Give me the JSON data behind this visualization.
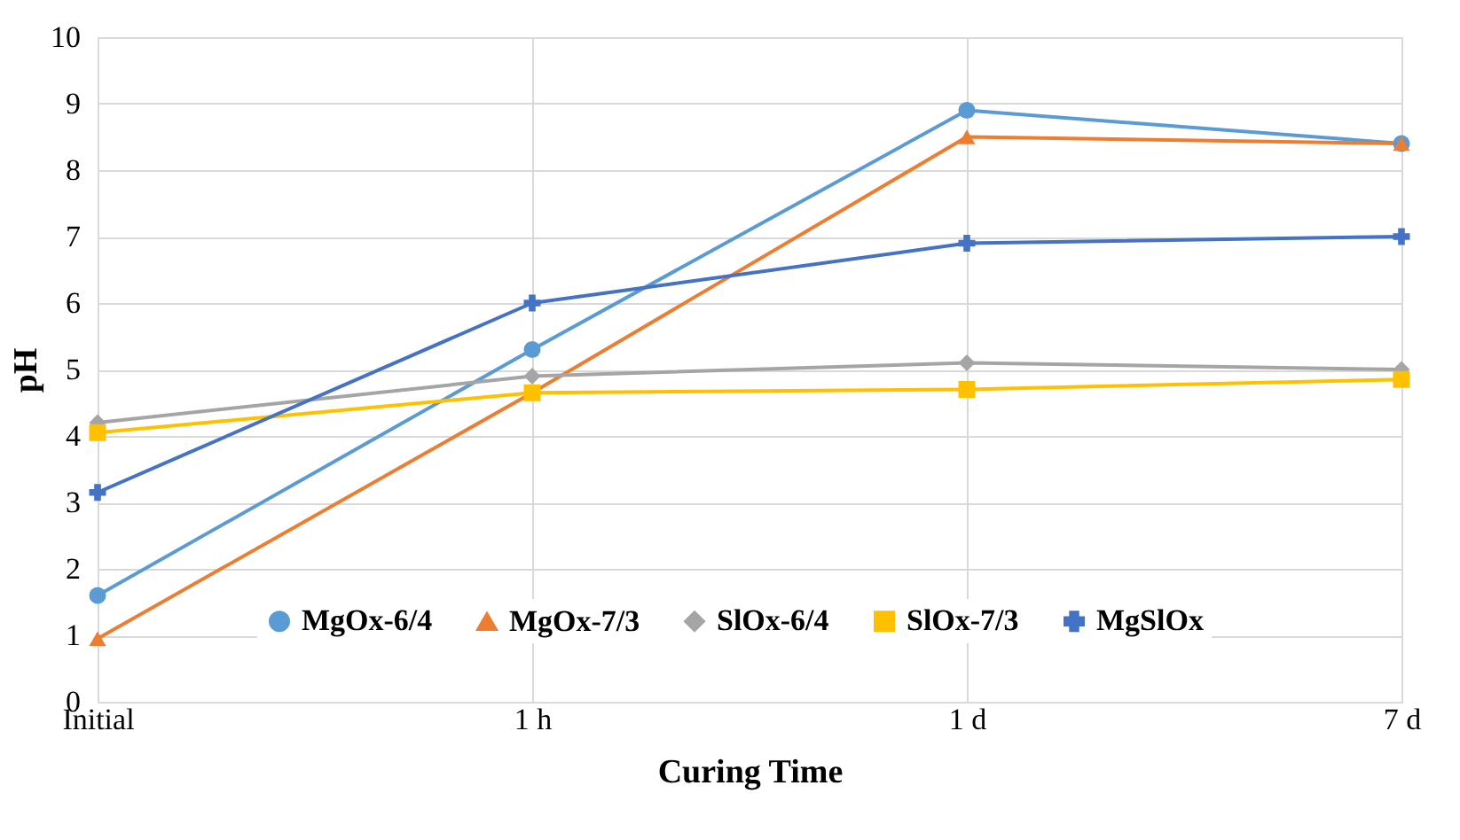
{
  "chart_data": {
    "type": "line",
    "xlabel": "Curing Time",
    "ylabel": "pH",
    "categories": [
      "Initial",
      "1 h",
      "1 d",
      "7 d"
    ],
    "ylim": [
      0,
      10
    ],
    "yticks": [
      0,
      1,
      2,
      3,
      4,
      5,
      6,
      7,
      8,
      9,
      10
    ],
    "grid": true,
    "legend": "bottom",
    "line_style": "solid",
    "series": [
      {
        "name": "MgOx-6/4",
        "color": "#5b9bd5",
        "marker": "circle",
        "values": [
          1.6,
          5.3,
          8.9,
          8.4
        ]
      },
      {
        "name": "MgOx-7/3",
        "color": "#ed7d31",
        "marker": "triangle",
        "values": [
          0.95,
          4.65,
          8.5,
          8.4
        ]
      },
      {
        "name": "SlOx-6/4",
        "color": "#a5a5a5",
        "marker": "diamond",
        "values": [
          4.2,
          4.9,
          5.1,
          5.0
        ]
      },
      {
        "name": "SlOx-7/3",
        "color": "#ffc000",
        "marker": "square",
        "values": [
          4.05,
          4.65,
          4.7,
          4.85
        ]
      },
      {
        "name": "MgSlOx",
        "color": "#4472c4",
        "marker": "cross",
        "values": [
          3.15,
          6.0,
          6.9,
          7.0
        ]
      }
    ]
  }
}
